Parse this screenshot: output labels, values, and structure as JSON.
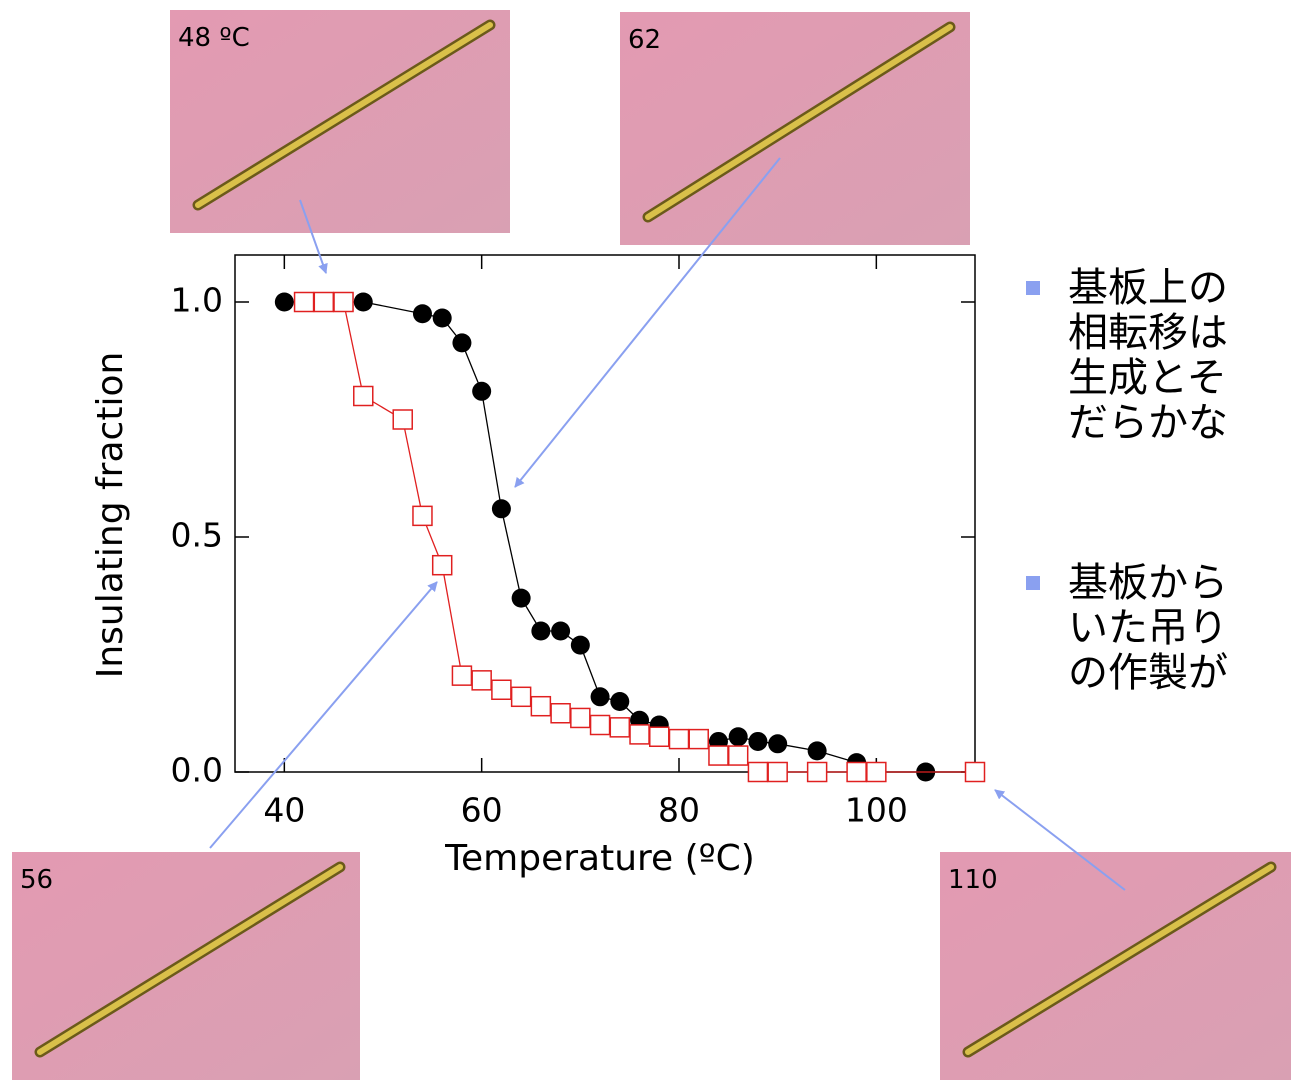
{
  "chart_data": {
    "type": "scatter",
    "xlabel": "Temperature (ºC)",
    "ylabel": "Insulating fraction",
    "xlim": [
      35,
      110
    ],
    "ylim": [
      0,
      1.1
    ],
    "xticks": [
      40,
      60,
      80,
      100
    ],
    "yticks": [
      {
        "value": 0,
        "label": "0.0"
      },
      {
        "value": 0.5,
        "label": "0.5"
      },
      {
        "value": 1,
        "label": "1.0"
      }
    ],
    "series": [
      {
        "color": "#000000",
        "marker": "circle",
        "x": [
          40,
          46,
          48,
          54,
          56,
          58,
          60,
          62,
          64,
          66,
          68,
          70,
          72,
          74,
          76,
          78,
          80,
          82,
          84,
          86,
          88,
          90,
          94,
          98,
          100,
          105,
          110
        ],
        "values": [
          1.0,
          1.0,
          1.0,
          0.975,
          0.966,
          0.913,
          0.81,
          0.56,
          0.37,
          0.3,
          0.3,
          0.27,
          0.16,
          0.15,
          0.11,
          0.1,
          0.07,
          0.07,
          0.065,
          0.075,
          0.065,
          0.06,
          0.045,
          0.02,
          0,
          0,
          0
        ]
      },
      {
        "color": "#e02020",
        "marker": "square",
        "x": [
          42,
          44,
          46,
          48,
          52,
          54,
          56,
          58,
          60,
          62,
          64,
          66,
          68,
          70,
          72,
          74,
          76,
          78,
          80,
          82,
          84,
          86,
          88,
          90,
          94,
          98,
          100,
          110
        ],
        "values": [
          1.0,
          1.0,
          1.0,
          0.8,
          0.75,
          0.545,
          0.44,
          0.205,
          0.195,
          0.175,
          0.16,
          0.14,
          0.125,
          0.115,
          0.1,
          0.095,
          0.08,
          0.075,
          0.07,
          0.07,
          0.035,
          0.035,
          0,
          0,
          0,
          0,
          0,
          0
        ]
      }
    ]
  },
  "insets": [
    "48 ºC",
    "62",
    "56",
    "110"
  ],
  "notes": [
    [
      "基板上の",
      "相転移は",
      "生成とそ",
      "だらかな"
    ],
    [
      "基板から",
      "いた吊り",
      "の作製が"
    ]
  ]
}
